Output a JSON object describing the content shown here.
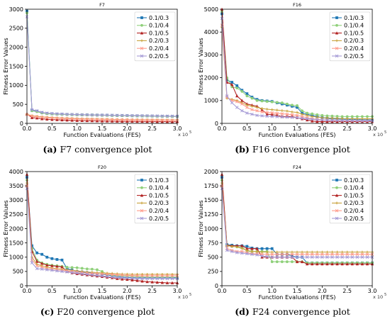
{
  "chart_data": [
    {
      "type": "line",
      "title": "F7",
      "xlabel": "Function Evaluations (FES)",
      "ylabel": "Fitness Error Values",
      "x_multiplier_label": "x 10",
      "x_multiplier_exp": "5",
      "xlim": [
        0,
        3.0
      ],
      "ylim": [
        0,
        3000
      ],
      "xticks": [
        "0.0",
        "0.5",
        "1.0",
        "1.5",
        "2.0",
        "2.5",
        "3.0"
      ],
      "yticks": [
        "0",
        "500",
        "1000",
        "1500",
        "2000",
        "2500",
        "3000"
      ],
      "caption_label": "(a)",
      "caption_text": "F7 convergence plot",
      "legend_position": "upper right",
      "x": [
        0,
        0.1,
        0.2,
        0.3,
        0.4,
        0.5,
        0.6,
        0.7,
        0.8,
        0.9,
        1.0,
        1.1,
        1.2,
        1.3,
        1.4,
        1.5,
        1.6,
        1.7,
        1.8,
        1.9,
        2.0,
        2.1,
        2.2,
        2.3,
        2.4,
        2.5,
        2.6,
        2.7,
        2.8,
        2.9,
        3.0
      ],
      "series": [
        {
          "name": "0.1/0.3",
          "values": [
            2950,
            340,
            320,
            280,
            260,
            250,
            245,
            240,
            235,
            230,
            228,
            225,
            223,
            220,
            218,
            215,
            213,
            210,
            208,
            205,
            203,
            200,
            198,
            196,
            194,
            192,
            190,
            188,
            186,
            184,
            182
          ]
        },
        {
          "name": "0.1/0.4",
          "values": [
            2900,
            330,
            305,
            270,
            255,
            245,
            240,
            235,
            232,
            228,
            225,
            222,
            220,
            218,
            215,
            212,
            210,
            207,
            205,
            202,
            200,
            198,
            196,
            194,
            192,
            190,
            188,
            186,
            184,
            182,
            180
          ]
        },
        {
          "name": "0.1/0.5",
          "values": [
            250,
            150,
            140,
            120,
            110,
            100,
            95,
            90,
            85,
            80,
            75,
            72,
            70,
            68,
            65,
            62,
            60,
            58,
            56,
            55,
            54,
            53,
            52,
            51,
            50,
            49,
            48,
            47,
            46,
            45,
            45
          ]
        },
        {
          "name": "0.2/0.3",
          "values": [
            240,
            200,
            185,
            170,
            160,
            150,
            145,
            140,
            135,
            130,
            125,
            120,
            118,
            115,
            112,
            110,
            108,
            105,
            102,
            100,
            98,
            96,
            95,
            94,
            93,
            92,
            91,
            90,
            89,
            88,
            88
          ]
        },
        {
          "name": "0.2/0.4",
          "values": [
            230,
            190,
            175,
            160,
            150,
            140,
            135,
            130,
            125,
            120,
            115,
            112,
            110,
            108,
            105,
            102,
            100,
            98,
            96,
            94,
            92,
            90,
            89,
            88,
            87,
            86,
            85,
            84,
            83,
            82,
            82
          ]
        },
        {
          "name": "0.2/0.5",
          "values": [
            2800,
            360,
            330,
            290,
            270,
            260,
            252,
            246,
            240,
            235,
            232,
            228,
            225,
            222,
            220,
            218,
            216,
            214,
            212,
            210,
            208,
            206,
            204,
            202,
            200,
            198,
            196,
            194,
            192,
            190,
            188
          ]
        }
      ]
    },
    {
      "type": "line",
      "title": "F16",
      "xlabel": "Function Evaluations (FES)",
      "ylabel": "Fitness Error Values",
      "x_multiplier_label": "x 10",
      "x_multiplier_exp": "5",
      "xlim": [
        0,
        3.0
      ],
      "ylim": [
        0,
        5000
      ],
      "xticks": [
        "0.0",
        "0.5",
        "1.0",
        "1.5",
        "2.0",
        "2.5",
        "3.0"
      ],
      "yticks": [
        "0",
        "1000",
        "2000",
        "3000",
        "4000",
        "5000"
      ],
      "caption_label": "(b)",
      "caption_text": "F16 convergence plot",
      "legend_position": "upper right",
      "x": [
        0,
        0.1,
        0.2,
        0.3,
        0.4,
        0.5,
        0.6,
        0.7,
        0.8,
        0.9,
        1.0,
        1.1,
        1.2,
        1.3,
        1.4,
        1.5,
        1.6,
        1.7,
        1.8,
        1.9,
        2.0,
        2.1,
        2.2,
        2.3,
        2.4,
        2.5,
        2.6,
        2.7,
        2.8,
        2.9,
        3.0
      ],
      "series": [
        {
          "name": "0.1/0.3",
          "values": [
            4800,
            1900,
            1800,
            1650,
            1450,
            1300,
            1150,
            1050,
            1000,
            980,
            960,
            900,
            850,
            800,
            750,
            700,
            450,
            400,
            350,
            300,
            250,
            220,
            200,
            190,
            180,
            175,
            170,
            165,
            160,
            155,
            150
          ]
        },
        {
          "name": "0.1/0.4",
          "values": [
            4900,
            2000,
            1600,
            1550,
            1400,
            1200,
            1100,
            1000,
            980,
            960,
            940,
            920,
            900,
            850,
            800,
            780,
            550,
            450,
            420,
            380,
            350,
            330,
            320,
            310,
            300,
            300,
            300,
            300,
            300,
            300,
            300
          ]
        },
        {
          "name": "0.1/0.5",
          "values": [
            5000,
            1800,
            1700,
            1200,
            1000,
            850,
            800,
            750,
            600,
            400,
            380,
            350,
            300,
            300,
            300,
            250,
            200,
            150,
            100,
            80,
            80,
            80,
            80,
            80,
            80,
            80,
            80,
            80,
            80,
            80,
            80
          ]
        },
        {
          "name": "0.2/0.3",
          "values": [
            4200,
            1100,
            1050,
            1000,
            900,
            800,
            750,
            700,
            650,
            620,
            600,
            580,
            560,
            540,
            500,
            480,
            400,
            350,
            300,
            280,
            250,
            240,
            230,
            220,
            210,
            205,
            200,
            200,
            200,
            200,
            200
          ]
        },
        {
          "name": "0.2/0.4",
          "values": [
            4300,
            1150,
            1000,
            950,
            850,
            700,
            600,
            550,
            500,
            480,
            460,
            440,
            420,
            400,
            380,
            350,
            300,
            250,
            200,
            180,
            160,
            150,
            140,
            130,
            120,
            115,
            110,
            105,
            100,
            100,
            100
          ]
        },
        {
          "name": "0.2/0.5",
          "values": [
            4600,
            1200,
            900,
            700,
            550,
            450,
            400,
            350,
            330,
            310,
            300,
            290,
            280,
            270,
            260,
            250,
            220,
            200,
            180,
            160,
            150,
            140,
            130,
            125,
            120,
            118,
            115,
            112,
            110,
            110,
            110
          ]
        }
      ]
    },
    {
      "type": "line",
      "title": "F20",
      "xlabel": "Function Evaluations (FES)",
      "ylabel": "Fitness Error Values",
      "x_multiplier_label": "x 10",
      "x_multiplier_exp": "5",
      "xlim": [
        0,
        3.0
      ],
      "ylim": [
        0,
        4000
      ],
      "xticks": [
        "0.0",
        "0.5",
        "1.0",
        "1.5",
        "2.0",
        "2.5",
        "3.0"
      ],
      "yticks": [
        "0",
        "500",
        "1000",
        "1500",
        "2000",
        "2500",
        "3000",
        "3500",
        "4000"
      ],
      "caption_label": "(c)",
      "caption_text": "F20 convergence plot",
      "legend_position": "upper right",
      "x": [
        0,
        0.1,
        0.2,
        0.3,
        0.4,
        0.5,
        0.6,
        0.7,
        0.8,
        0.9,
        1.0,
        1.1,
        1.2,
        1.3,
        1.4,
        1.5,
        1.6,
        1.7,
        1.8,
        1.9,
        2.0,
        2.1,
        2.2,
        2.3,
        2.4,
        2.5,
        2.6,
        2.7,
        2.8,
        2.9,
        3.0
      ],
      "series": [
        {
          "name": "0.1/0.3",
          "values": [
            3800,
            1400,
            1150,
            1100,
            1000,
            950,
            920,
            900,
            600,
            550,
            500,
            480,
            460,
            440,
            420,
            400,
            380,
            350,
            330,
            300,
            290,
            280,
            280,
            280,
            280,
            280,
            280,
            280,
            280,
            280,
            280
          ]
        },
        {
          "name": "0.1/0.4",
          "values": [
            3700,
            1300,
            900,
            800,
            750,
            720,
            700,
            680,
            650,
            640,
            630,
            610,
            590,
            580,
            560,
            500,
            400,
            380,
            360,
            350,
            340,
            330,
            320,
            310,
            300,
            300,
            300,
            300,
            300,
            300,
            300
          ]
        },
        {
          "name": "0.1/0.5",
          "values": [
            3900,
            1200,
            850,
            780,
            720,
            700,
            680,
            660,
            500,
            450,
            420,
            400,
            380,
            360,
            340,
            320,
            300,
            280,
            250,
            230,
            220,
            200,
            180,
            160,
            140,
            130,
            120,
            110,
            100,
            100,
            100
          ]
        },
        {
          "name": "0.2/0.3",
          "values": [
            3600,
            1000,
            750,
            700,
            650,
            620,
            600,
            580,
            560,
            540,
            520,
            500,
            480,
            470,
            460,
            450,
            440,
            430,
            420,
            410,
            405,
            400,
            400,
            400,
            400,
            400,
            400,
            400,
            400,
            400,
            400
          ]
        },
        {
          "name": "0.2/0.4",
          "values": [
            3500,
            900,
            700,
            650,
            600,
            580,
            560,
            540,
            520,
            500,
            480,
            460,
            440,
            430,
            420,
            410,
            400,
            390,
            380,
            370,
            360,
            355,
            350,
            350,
            350,
            350,
            350,
            350,
            350,
            350,
            350
          ]
        },
        {
          "name": "0.2/0.5",
          "values": [
            3400,
            800,
            600,
            580,
            560,
            540,
            520,
            500,
            480,
            460,
            440,
            420,
            400,
            380,
            360,
            340,
            320,
            300,
            290,
            280,
            270,
            260,
            250,
            250,
            250,
            250,
            250,
            250,
            250,
            250,
            250
          ]
        }
      ]
    },
    {
      "type": "line",
      "title": "F24",
      "xlabel": "Function Evaluations (FES)",
      "ylabel": "Fitness Error Values",
      "x_multiplier_label": "x 10",
      "x_multiplier_exp": "5",
      "xlim": [
        0,
        3.0
      ],
      "ylim": [
        0,
        2000
      ],
      "xticks": [
        "0.0",
        "0.5",
        "1.0",
        "1.5",
        "2.0",
        "2.5",
        "3.0"
      ],
      "yticks": [
        "0",
        "250",
        "500",
        "750",
        "1000",
        "1250",
        "1500",
        "1750",
        "2000"
      ],
      "caption_label": "(d)",
      "caption_text": "F24 convergence plot",
      "legend_position": "upper right",
      "x": [
        0,
        0.1,
        0.2,
        0.3,
        0.4,
        0.5,
        0.6,
        0.7,
        0.8,
        0.9,
        1.0,
        1.1,
        1.2,
        1.3,
        1.4,
        1.5,
        1.6,
        1.7,
        1.8,
        1.9,
        2.0,
        2.1,
        2.2,
        2.3,
        2.4,
        2.5,
        2.6,
        2.7,
        2.8,
        2.9,
        3.0
      ],
      "series": [
        {
          "name": "0.1/0.3",
          "values": [
            1900,
            720,
            710,
            700,
            700,
            690,
            660,
            650,
            650,
            650,
            650,
            550,
            550,
            550,
            520,
            500,
            500,
            400,
            400,
            400,
            400,
            400,
            400,
            400,
            400,
            400,
            400,
            400,
            400,
            400,
            400
          ]
        },
        {
          "name": "0.1/0.4",
          "values": [
            1850,
            700,
            690,
            680,
            680,
            600,
            600,
            600,
            600,
            600,
            420,
            420,
            420,
            420,
            420,
            420,
            420,
            400,
            400,
            400,
            400,
            400,
            400,
            400,
            400,
            400,
            400,
            400,
            400,
            400,
            400
          ]
        },
        {
          "name": "0.1/0.5",
          "values": [
            1950,
            710,
            700,
            700,
            700,
            650,
            650,
            650,
            500,
            500,
            500,
            500,
            500,
            500,
            500,
            420,
            420,
            380,
            380,
            380,
            380,
            380,
            380,
            380,
            380,
            380,
            380,
            380,
            380,
            380,
            380
          ]
        },
        {
          "name": "0.2/0.3",
          "values": [
            1800,
            700,
            690,
            680,
            650,
            620,
            600,
            600,
            590,
            590,
            590,
            590,
            590,
            590,
            590,
            590,
            590,
            590,
            590,
            590,
            590,
            590,
            590,
            590,
            590,
            590,
            590,
            590,
            590,
            590,
            590
          ]
        },
        {
          "name": "0.2/0.4",
          "values": [
            1750,
            650,
            620,
            600,
            600,
            580,
            560,
            560,
            550,
            550,
            550,
            550,
            550,
            550,
            550,
            550,
            550,
            550,
            550,
            550,
            550,
            550,
            550,
            550,
            550,
            550,
            550,
            550,
            550,
            550,
            550
          ]
        },
        {
          "name": "0.2/0.5",
          "values": [
            1700,
            620,
            600,
            580,
            570,
            560,
            550,
            540,
            520,
            510,
            500,
            500,
            500,
            500,
            500,
            500,
            500,
            500,
            500,
            500,
            500,
            500,
            500,
            500,
            500,
            500,
            500,
            500,
            500,
            500,
            500
          ]
        }
      ]
    }
  ],
  "series_style": [
    {
      "name": "0.1/0.3",
      "color": "#1f77b4",
      "marker": "square"
    },
    {
      "name": "0.1/0.4",
      "color": "#8fd07a",
      "marker": "circle"
    },
    {
      "name": "0.1/0.5",
      "color": "#b22222",
      "marker": "triangle"
    },
    {
      "name": "0.2/0.3",
      "color": "#c8a23a",
      "marker": "plus"
    },
    {
      "name": "0.2/0.4",
      "color": "#ff9a8a",
      "marker": "cross"
    },
    {
      "name": "0.2/0.5",
      "color": "#a59ad6",
      "marker": "x"
    }
  ]
}
